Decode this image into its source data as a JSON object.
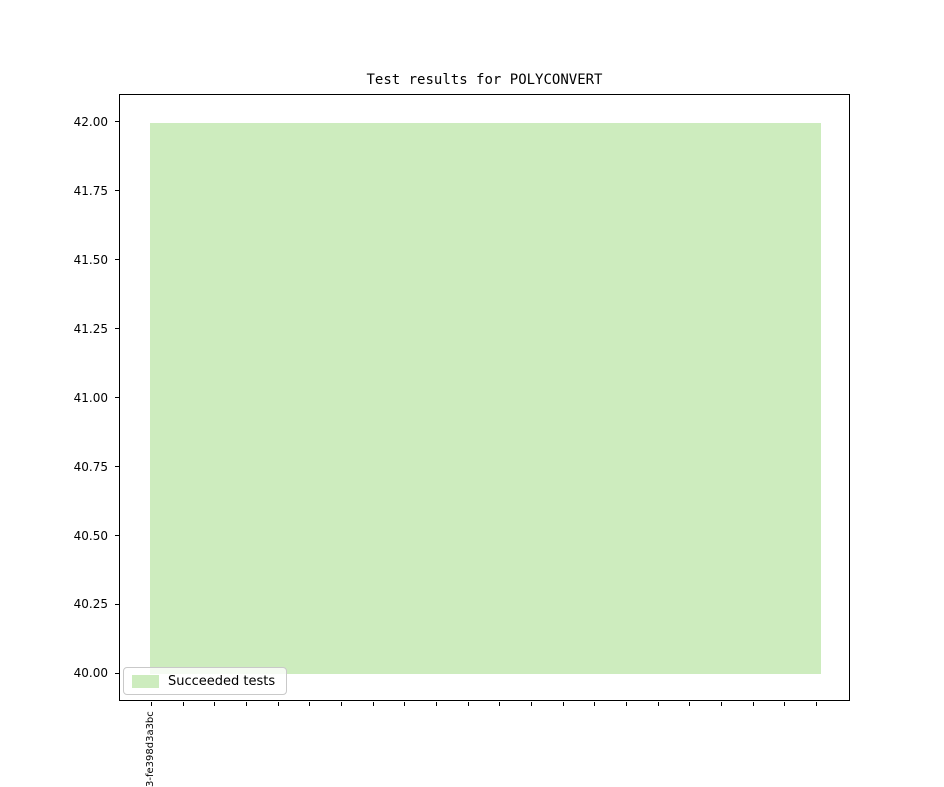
{
  "figure": {
    "background_color": "#ffffff",
    "text_color": "#000000"
  },
  "chart_data": {
    "type": "bar",
    "title": "Test results for POLYCONVERT",
    "xlabel": "",
    "ylabel": "",
    "ylim": [
      39.9,
      42.1
    ],
    "grid": false,
    "y_tick_labels": [
      "42.00",
      "41.75",
      "41.50",
      "41.25",
      "41.00",
      "40.75",
      "40.50",
      "40.25",
      "40.00"
    ],
    "y_tick_values": [
      42.0,
      41.75,
      41.5,
      41.25,
      41.0,
      40.75,
      40.5,
      40.25,
      40.0
    ],
    "x_tick_count": 22,
    "x_tick_labels_visible": [
      "3-fe398d3a3bc"
    ],
    "series": [
      {
        "name": "Succeeded tests",
        "color": "#cdecbe",
        "value_top": 42.0,
        "value_bottom": 40.0
      }
    ],
    "legend": {
      "entries": [
        "Succeeded tests"
      ],
      "position": "lower-left",
      "swatch_color": "#cdecbe",
      "border_color": "#c9c9c9"
    }
  }
}
